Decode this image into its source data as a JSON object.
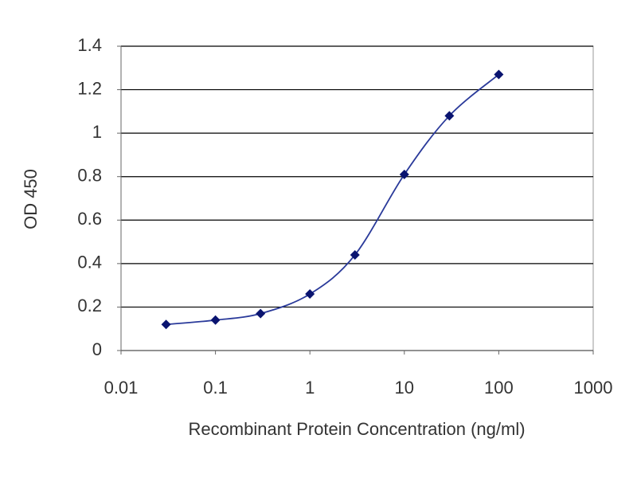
{
  "chart_data": {
    "type": "line",
    "xlabel": "Recombinant Protein Concentration (ng/ml)",
    "ylabel": "OD 450",
    "x": [
      0.03,
      0.1,
      0.3,
      1,
      3,
      10,
      30,
      100
    ],
    "series": [
      {
        "color": "#2a3a9a",
        "marker_color": "#0a1470",
        "values": [
          0.12,
          0.14,
          0.17,
          0.26,
          0.44,
          0.81,
          1.08,
          1.27
        ]
      }
    ],
    "xlim": [
      0.01,
      1000
    ],
    "xticks": [
      0.01,
      0.1,
      1,
      10,
      100,
      1000
    ],
    "xscale": "log",
    "ylim": [
      0,
      1.4
    ],
    "yticks": [
      0,
      0.2,
      0.4,
      0.6,
      0.8,
      1,
      1.2,
      1.4
    ],
    "grid": true
  }
}
